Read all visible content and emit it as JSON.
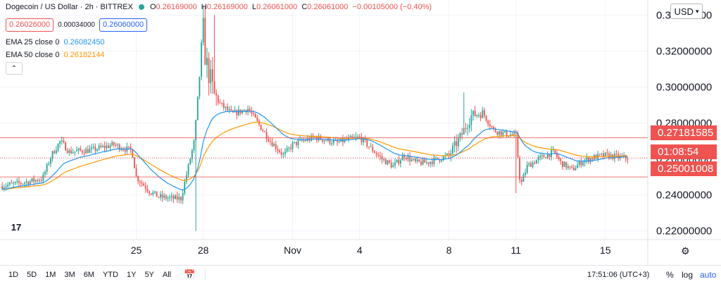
{
  "header": {
    "symbol": "Dogecoin / US Dollar · 2h · BITTREX",
    "ohlc": {
      "o_label": "O",
      "o": "0.26169000",
      "h_label": "H",
      "h": "0.26169000",
      "l_label": "L",
      "l": "0.26061000",
      "c_label": "C",
      "c": "0.26061000",
      "change": "−0.00105000 (−0.40%)"
    },
    "bid": "0.26026000",
    "spread": "0.00034000",
    "ask": "0.26060000",
    "ema25_label": "EMA 25 close 0",
    "ema25_value": "0.26082450",
    "ema50_label": "EMA 50 close 0",
    "ema50_value": "0.26182144"
  },
  "currency": "USD",
  "price_tags": {
    "upper_line": "0.27181585",
    "countdown": "01:08:54",
    "lower_line": "0.25001008"
  },
  "bottom_bar": {
    "ranges": [
      "1D",
      "5D",
      "1M",
      "3M",
      "6M",
      "YTD",
      "1Y",
      "5Y",
      "All"
    ],
    "clock": "17:51:06 (UTC+3)",
    "percent": "%",
    "log": "log",
    "auto": "auto"
  },
  "colors": {
    "up": "#26a69a",
    "down": "#ef5350",
    "ema25": "#2196f3",
    "ema50": "#ff9800",
    "hline": "#ef5350",
    "grid": "#f0f3fa"
  },
  "icons": {
    "collapse": "chevron-up-icon",
    "calendar": "calendar-icon",
    "settings": "gear-icon",
    "logo": "tradingview-logo"
  },
  "chart_data": {
    "type": "candlestick",
    "title": "Dogecoin / US Dollar · 2h · BITTREX",
    "y_ticks": [
      "0.34000000",
      "0.32000000",
      "0.30000000",
      "0.28000000",
      "0.26000000",
      "0.24000000",
      "0.22000000"
    ],
    "y_tick_values": [
      0.34,
      0.32,
      0.3,
      0.28,
      0.26,
      0.24,
      0.22
    ],
    "x_ticks": [
      "25",
      "28",
      "Nov",
      "4",
      "8",
      "11",
      "15"
    ],
    "x_tick_days": [
      0,
      3,
      7,
      10,
      14,
      17,
      21
    ],
    "ylim": [
      0.2152,
      0.3484
    ],
    "xlim_days": [
      -6.1,
      22.9
    ],
    "grid": true,
    "hlines": [
      0.27181585,
      0.25001008
    ],
    "last_price": 0.26061,
    "series_guide": {
      "days": [
        -6.0,
        -5.0,
        -4.2,
        -3.8,
        -3.4,
        -3.0,
        -2.0,
        -1.0,
        -0.6,
        -0.2,
        0.0,
        0.6,
        1.0,
        1.6,
        2.0,
        2.6,
        3.0,
        3.1,
        3.3,
        3.5,
        3.8,
        4.3,
        5.0,
        6.0,
        6.6,
        7.0,
        7.4,
        8.0,
        9.0,
        9.5,
        10.0,
        11.0,
        11.5,
        12.0,
        12.5,
        13.0,
        14.0,
        14.5,
        15.0,
        15.5,
        16.0,
        16.5,
        17.0,
        17.2,
        17.5,
        18.0,
        18.7,
        19.0,
        19.5,
        20.0,
        20.5,
        21.0,
        22.0
      ],
      "close": [
        0.245,
        0.247,
        0.249,
        0.262,
        0.27,
        0.264,
        0.265,
        0.268,
        0.266,
        0.265,
        0.25,
        0.242,
        0.239,
        0.238,
        0.238,
        0.27,
        0.332,
        0.315,
        0.305,
        0.295,
        0.29,
        0.285,
        0.288,
        0.27,
        0.262,
        0.268,
        0.27,
        0.272,
        0.269,
        0.271,
        0.272,
        0.26,
        0.256,
        0.262,
        0.258,
        0.258,
        0.262,
        0.272,
        0.284,
        0.286,
        0.276,
        0.274,
        0.273,
        0.245,
        0.256,
        0.26,
        0.264,
        0.258,
        0.254,
        0.259,
        0.261,
        0.262,
        0.2606
      ]
    }
  }
}
